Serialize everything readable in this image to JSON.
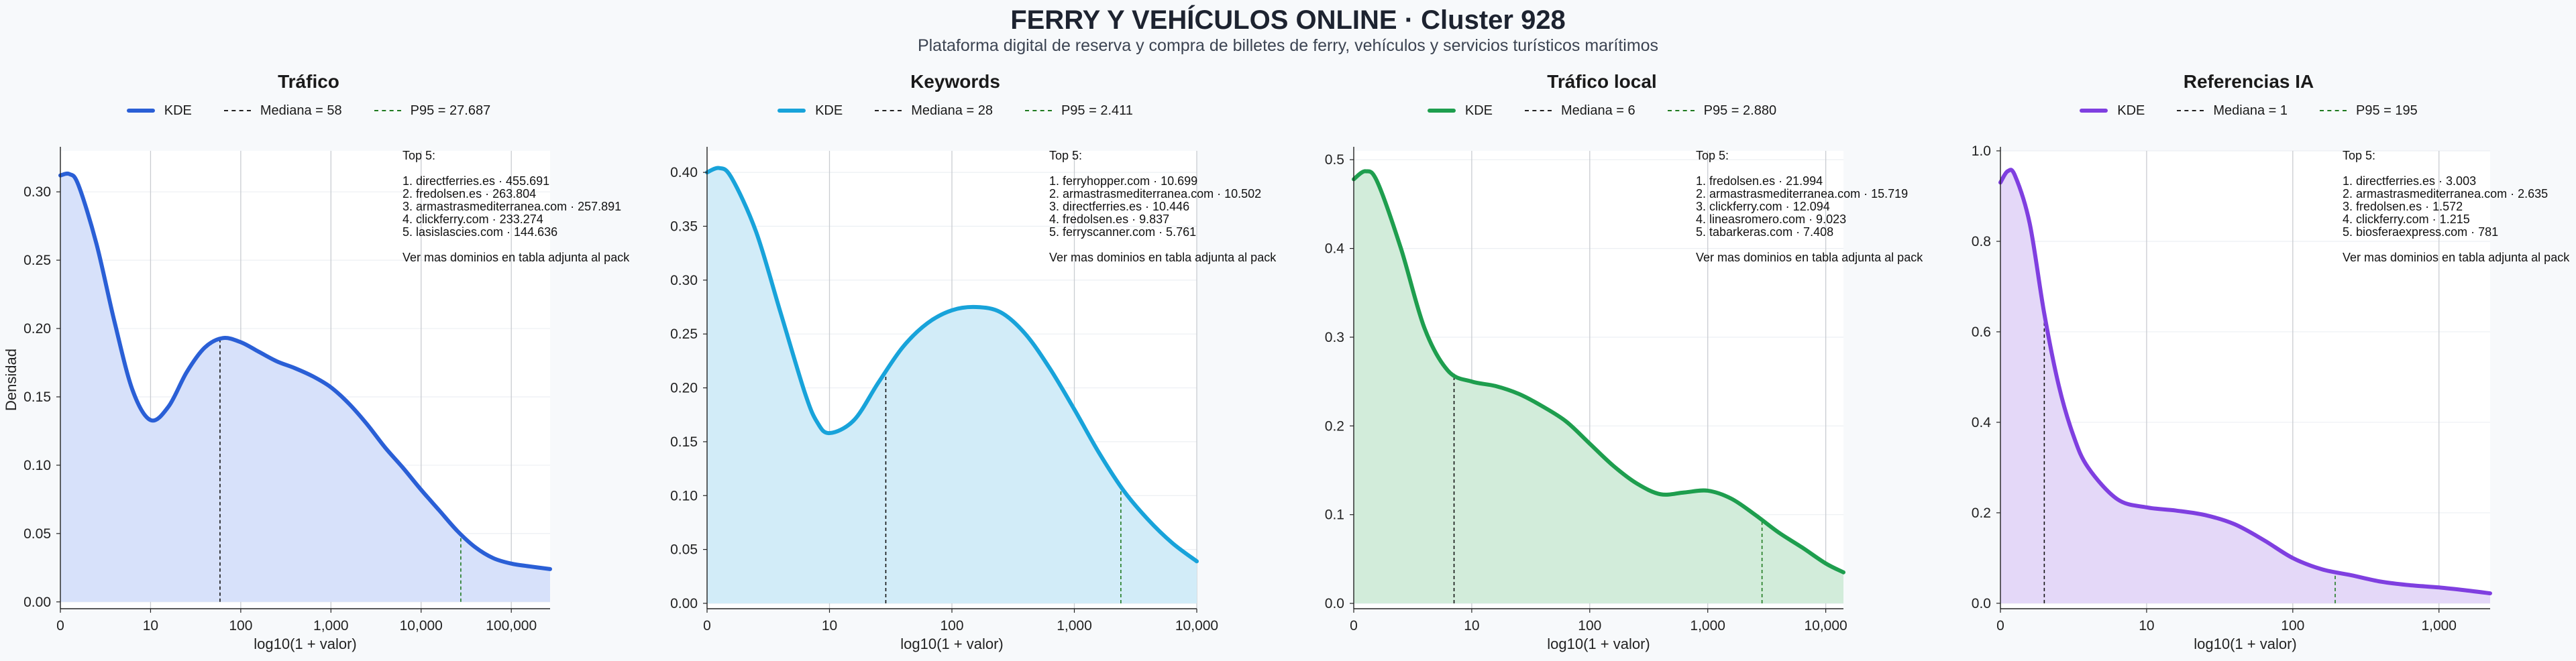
{
  "header": {
    "title": "FERRY Y VEHÍCULOS ONLINE · Cluster 928",
    "subtitle": "Plataforma digital de reserva y compra de billetes de ferry, vehículos y servicios turísticos marítimos"
  },
  "shared": {
    "xlabel": "log10(1 + valor)",
    "ylabel": "Densidad",
    "legend_kde": "KDE",
    "top_heading": "Top 5:",
    "top_footer": "Ver mas dominios en tabla adjunta al pack"
  },
  "chart_data": [
    {
      "type": "area",
      "title": "Tráfico",
      "color": "#2a5fd6",
      "fill": "#d7e1fa",
      "xlabel": "log10(1 + valor)",
      "ylabel": "Densidad",
      "xlim": [
        0,
        5.43
      ],
      "ylim": [
        -0.005,
        0.33
      ],
      "x_scale": "log10(1 + valor)",
      "x_ticks": [
        {
          "v": 0,
          "t": "0"
        },
        {
          "v": 1,
          "t": "10"
        },
        {
          "v": 2,
          "t": "100"
        },
        {
          "v": 3,
          "t": "1,000"
        },
        {
          "v": 4,
          "t": "10,000"
        },
        {
          "v": 5,
          "t": "100,000"
        }
      ],
      "y_ticks": [
        0,
        0.05,
        0.1,
        0.15,
        0.2,
        0.25,
        0.3
      ],
      "y_fmt": 2,
      "median": {
        "label": "Mediana = 58",
        "x": 1.77
      },
      "p95": {
        "label": "P95 = 27.687",
        "x": 4.44
      },
      "kde": {
        "x": [
          0,
          0.1,
          0.2,
          0.4,
          0.6,
          0.8,
          1.0,
          1.2,
          1.4,
          1.6,
          1.8,
          2.0,
          2.2,
          2.4,
          2.6,
          2.8,
          3.0,
          3.2,
          3.4,
          3.6,
          3.8,
          4.0,
          4.2,
          4.4,
          4.6,
          4.8,
          5.0,
          5.2,
          5.43
        ],
        "y": [
          0.312,
          0.313,
          0.305,
          0.262,
          0.205,
          0.155,
          0.133,
          0.143,
          0.168,
          0.186,
          0.193,
          0.19,
          0.183,
          0.176,
          0.171,
          0.165,
          0.157,
          0.145,
          0.13,
          0.113,
          0.098,
          0.082,
          0.067,
          0.052,
          0.04,
          0.032,
          0.028,
          0.026,
          0.024
        ]
      },
      "top5": [
        "1. directferries.es · 455.691",
        "2. fredolsen.es · 263.804",
        "3. armastrasmediterranea.com · 257.891",
        "4. clickferry.com · 233.274",
        "5. lasislascies.com · 144.636"
      ]
    },
    {
      "type": "area",
      "title": "Keywords",
      "color": "#18a3da",
      "fill": "#d2ecf8",
      "xlabel": "log10(1 + valor)",
      "ylabel": "",
      "xlim": [
        0,
        4.0
      ],
      "ylim": [
        -0.005,
        0.42
      ],
      "x_scale": "log10(1 + valor)",
      "x_ticks": [
        {
          "v": 0,
          "t": "0"
        },
        {
          "v": 1,
          "t": "10"
        },
        {
          "v": 2,
          "t": "100"
        },
        {
          "v": 3,
          "t": "1,000"
        },
        {
          "v": 4,
          "t": "10,000"
        }
      ],
      "y_ticks": [
        0,
        0.05,
        0.1,
        0.15,
        0.2,
        0.25,
        0.3,
        0.35,
        0.4
      ],
      "y_fmt": 2,
      "median": {
        "label": "Mediana = 28",
        "x": 1.46
      },
      "p95": {
        "label": "P95 = 2.411",
        "x": 3.38
      },
      "kde": {
        "x": [
          0,
          0.1,
          0.2,
          0.4,
          0.6,
          0.8,
          0.9,
          1.0,
          1.2,
          1.4,
          1.6,
          1.8,
          2.0,
          2.2,
          2.4,
          2.6,
          2.8,
          3.0,
          3.2,
          3.4,
          3.6,
          3.8,
          4.0
        ],
        "y": [
          0.4,
          0.404,
          0.395,
          0.345,
          0.27,
          0.195,
          0.168,
          0.158,
          0.17,
          0.205,
          0.238,
          0.26,
          0.272,
          0.275,
          0.27,
          0.25,
          0.218,
          0.18,
          0.14,
          0.105,
          0.078,
          0.056,
          0.039
        ]
      },
      "top5": [
        "1. ferryhopper.com · 10.699",
        "2. armastrasmediterranea.com · 10.502",
        "3. directferries.es · 10.446",
        "4. fredolsen.es · 9.837",
        "5. ferryscanner.com · 5.761"
      ]
    },
    {
      "type": "area",
      "title": "Tráfico local",
      "color": "#1e9e4e",
      "fill": "#d2ecda",
      "xlabel": "log10(1 + valor)",
      "ylabel": "",
      "xlim": [
        0,
        4.15
      ],
      "ylim": [
        -0.006,
        0.51
      ],
      "x_scale": "log10(1 + valor)",
      "x_ticks": [
        {
          "v": 0,
          "t": "0"
        },
        {
          "v": 1,
          "t": "10"
        },
        {
          "v": 2,
          "t": "100"
        },
        {
          "v": 3,
          "t": "1,000"
        },
        {
          "v": 4,
          "t": "10,000"
        }
      ],
      "y_ticks": [
        0,
        0.1,
        0.2,
        0.3,
        0.4,
        0.5
      ],
      "y_fmt": 1,
      "median": {
        "label": "Mediana = 6",
        "x": 0.85
      },
      "p95": {
        "label": "P95 = 2.880",
        "x": 3.46
      },
      "kde": {
        "x": [
          0,
          0.1,
          0.2,
          0.4,
          0.6,
          0.8,
          1.0,
          1.2,
          1.4,
          1.6,
          1.8,
          2.0,
          2.2,
          2.4,
          2.6,
          2.8,
          3.0,
          3.2,
          3.4,
          3.6,
          3.8,
          4.0,
          4.15
        ],
        "y": [
          0.478,
          0.487,
          0.475,
          0.4,
          0.31,
          0.262,
          0.25,
          0.245,
          0.236,
          0.222,
          0.205,
          0.18,
          0.155,
          0.135,
          0.123,
          0.125,
          0.127,
          0.118,
          0.1,
          0.08,
          0.063,
          0.045,
          0.035
        ]
      },
      "top5": [
        "1. fredolsen.es · 21.994",
        "2. armastrasmediterranea.com · 15.719",
        "3. clickferry.com · 12.094",
        "4. lineasromero.com · 9.023",
        "5. tabarkeras.com · 7.408"
      ]
    },
    {
      "type": "area",
      "title": "Referencias IA",
      "color": "#7f3fe0",
      "fill": "#e4d8f8",
      "xlabel": "log10(1 + valor)",
      "ylabel": "",
      "xlim": [
        0,
        3.35
      ],
      "ylim": [
        -0.012,
        1.0
      ],
      "x_scale": "log10(1 + valor)",
      "x_ticks": [
        {
          "v": 0,
          "t": "0"
        },
        {
          "v": 1,
          "t": "10"
        },
        {
          "v": 2,
          "t": "100"
        },
        {
          "v": 3,
          "t": "1,000"
        }
      ],
      "y_ticks": [
        0,
        0.2,
        0.4,
        0.6,
        0.8,
        1.0
      ],
      "y_fmt": 1,
      "median": {
        "label": "Mediana = 1",
        "x": 0.3
      },
      "p95": {
        "label": "P95 = 195",
        "x": 2.29
      },
      "kde": {
        "x": [
          0,
          0.05,
          0.1,
          0.2,
          0.3,
          0.4,
          0.5,
          0.6,
          0.8,
          1.0,
          1.2,
          1.4,
          1.6,
          1.8,
          2.0,
          2.2,
          2.4,
          2.6,
          2.8,
          3.0,
          3.2,
          3.35
        ],
        "y": [
          0.93,
          0.955,
          0.945,
          0.84,
          0.64,
          0.48,
          0.37,
          0.3,
          0.23,
          0.212,
          0.205,
          0.195,
          0.175,
          0.14,
          0.1,
          0.075,
          0.062,
          0.048,
          0.04,
          0.035,
          0.028,
          0.022
        ]
      },
      "top5": [
        "1. directferries.es · 3.003",
        "2. armastrasmediterranea.com · 2.635",
        "3. fredolsen.es · 1.572",
        "4. clickferry.com · 1.215",
        "5. biosferaexpress.com · 781"
      ]
    }
  ]
}
